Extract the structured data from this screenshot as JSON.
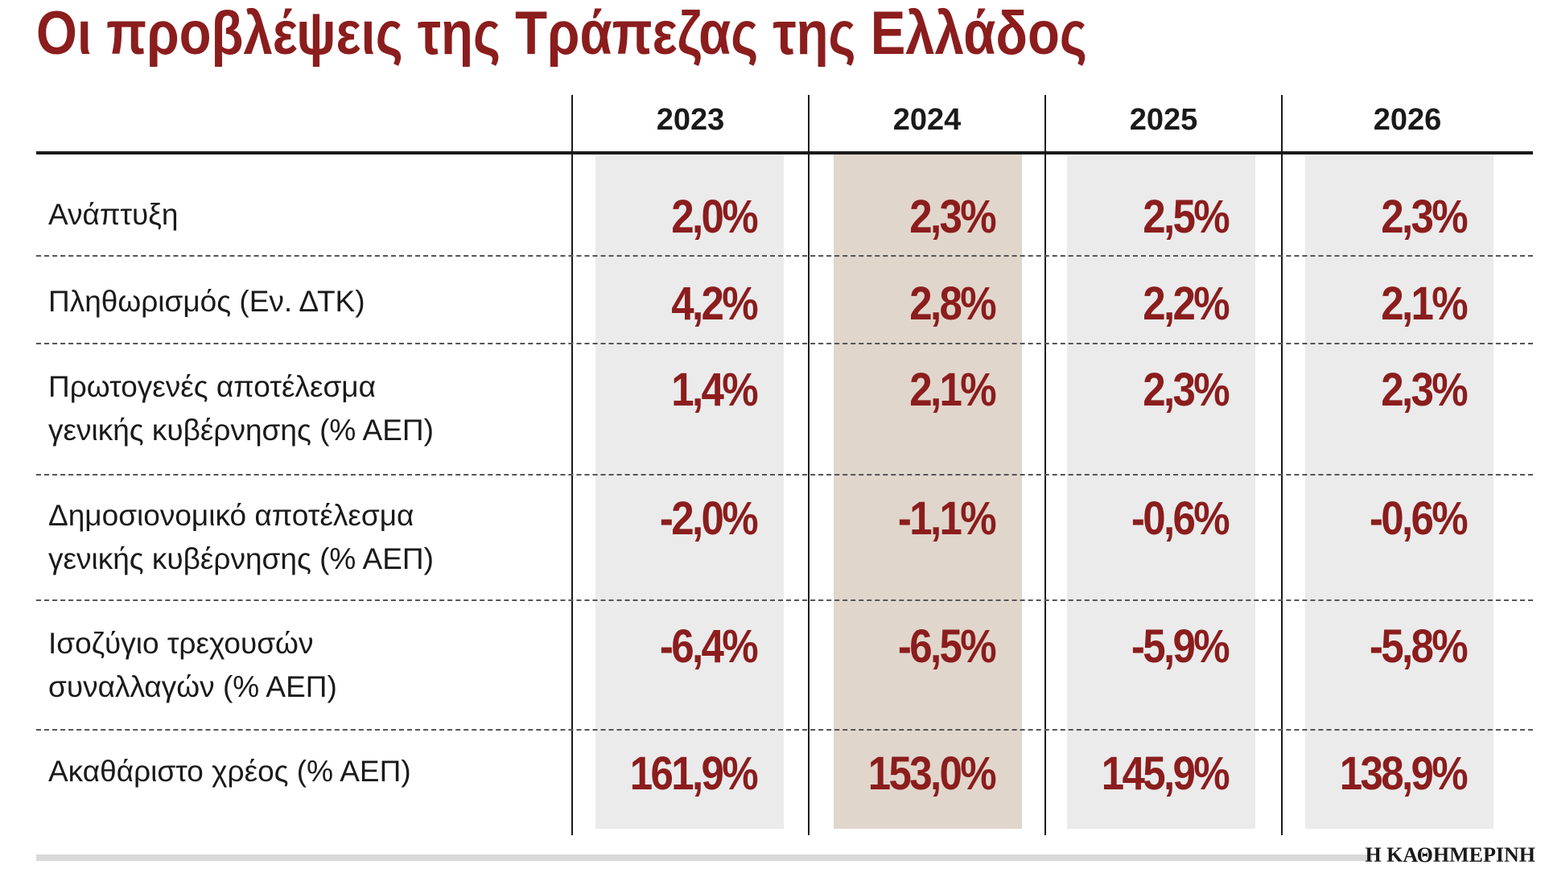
{
  "title": "Οι προβλέψεις της Τράπεζας της Ελλάδος",
  "years": [
    "2023",
    "2024",
    "2025",
    "2026"
  ],
  "highlight_year": "2024",
  "rows": [
    {
      "label": [
        "Ανάπτυξη"
      ],
      "values": [
        "2,0%",
        "2,3%",
        "2,5%",
        "2,3%"
      ]
    },
    {
      "label": [
        "Πληθωρισμός (Εν. ΔΤΚ)"
      ],
      "values": [
        "4,2%",
        "2,8%",
        "2,2%",
        "2,1%"
      ]
    },
    {
      "label": [
        "Πρωτογενές αποτέλεσμα",
        "γενικής κυβέρνησης (% ΑΕΠ)"
      ],
      "values": [
        "1,4%",
        "2,1%",
        "2,3%",
        "2,3%"
      ]
    },
    {
      "label": [
        "Δημοσιονομικό αποτέλεσμα",
        "γενικής κυβέρνησης (% ΑΕΠ)"
      ],
      "values": [
        "-2,0%",
        "-1,1%",
        "-0,6%",
        "-0,6%"
      ]
    },
    {
      "label": [
        "Ισοζύγιο τρεχουσών",
        "συναλλαγών (% ΑΕΠ)"
      ],
      "values": [
        "-6,4%",
        "-6,5%",
        "-5,9%",
        "-5,8%"
      ]
    },
    {
      "label": [
        "Ακαθάριστο χρέος (% ΑΕΠ)"
      ],
      "values": [
        "161,9%",
        "153,0%",
        "145,9%",
        "138,9%"
      ]
    }
  ],
  "source": "Η ΚΑΘΗΜΕΡΙΝΗ",
  "colors": {
    "title": "#8b1d1d",
    "value": "#8b1d1d",
    "shade": "#ebebeb",
    "highlight_shade": "#e1d6cc"
  }
}
